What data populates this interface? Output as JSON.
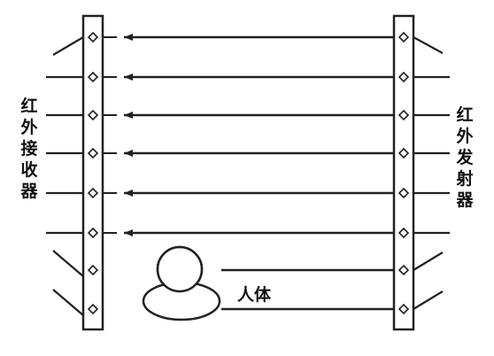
{
  "receiver": {
    "label": "红外接收器"
  },
  "emitter": {
    "label": "红外发射器"
  },
  "person": {
    "label": "人体"
  },
  "colors": {
    "ink": "#222222"
  },
  "beams": {
    "total": 8,
    "interrupted": [
      7,
      8
    ]
  }
}
